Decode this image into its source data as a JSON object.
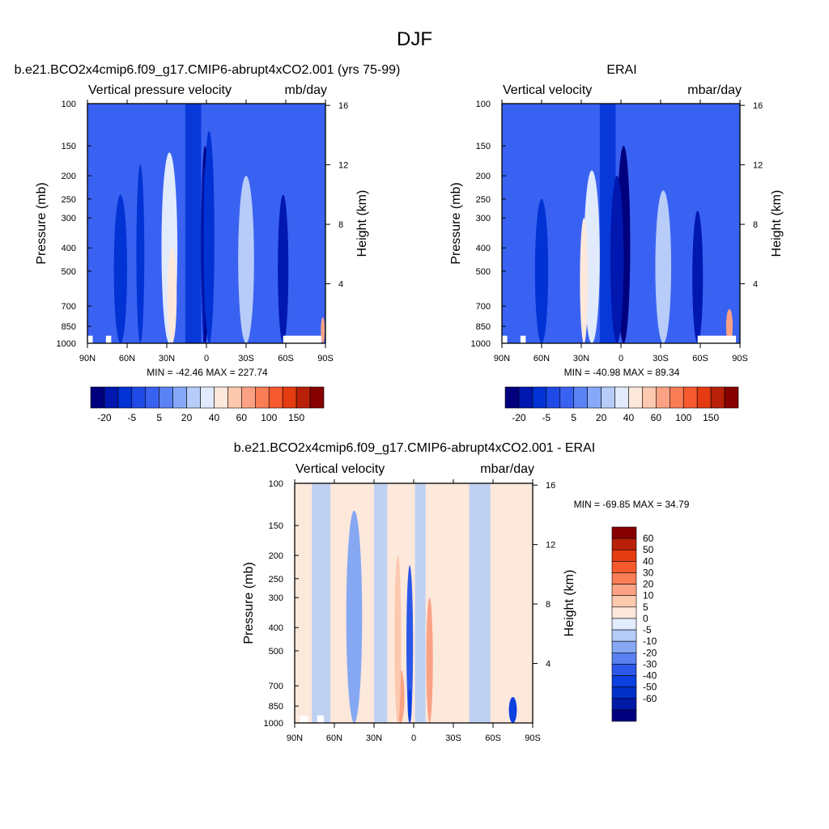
{
  "figure_title": "DJF",
  "colors": {
    "model_cbar": [
      "#00007f",
      "#0018b0",
      "#0032d4",
      "#1f4ae6",
      "#3a62f2",
      "#5a82f5",
      "#86a8f7",
      "#b7ccf8",
      "#e1ebfd",
      "#fde8dc",
      "#fcc8ae",
      "#fba284",
      "#f97d55",
      "#f65a2e",
      "#e43b10",
      "#b82008",
      "#870000"
    ],
    "diff_cbar": [
      "#00007f",
      "#001aa8",
      "#0030c8",
      "#0c40e0",
      "#2c58ea",
      "#5880ee",
      "#86a8f2",
      "#b4ccf7",
      "#e2ecfd",
      "#fde8dc",
      "#fcc8ae",
      "#fba284",
      "#f97d55",
      "#f65a2e",
      "#e43b10",
      "#b82008",
      "#870000"
    ]
  },
  "chart_data": [
    {
      "id": "model",
      "type": "contour",
      "title": "b.e21.BCO2x4cmip6.f09_g17.CMIP6-abrupt4xCO2.001 (yrs 75-99)",
      "left_subtitle": "Vertical pressure velocity",
      "right_subtitle": "mb/day",
      "ylabel": "Pressure (mb)",
      "ylabel_right": "Height (km)",
      "y_ticks": [
        "100",
        "150",
        "200",
        "250",
        "300",
        "400",
        "500",
        "700",
        "850",
        "1000"
      ],
      "y_tick_values": [
        100,
        150,
        200,
        250,
        300,
        400,
        500,
        700,
        850,
        1000
      ],
      "right_ticks": [
        "16",
        "12",
        "8",
        "4"
      ],
      "right_tick_values": [
        16,
        12,
        8,
        4
      ],
      "x_ticks": [
        "90N",
        "60N",
        "30N",
        "0",
        "30S",
        "60S",
        "90S"
      ],
      "x_tick_values": [
        90,
        60,
        30,
        0,
        -30,
        -60,
        -90
      ],
      "min_max_label": "MIN = -42.46  MAX = 227.74",
      "min": -42.46,
      "max": 227.74,
      "cbar_labels": [
        "-20",
        "-5",
        "5",
        "20",
        "40",
        "60",
        "100",
        "150"
      ],
      "features": [
        {
          "lat": 1,
          "width": 6,
          "value": -40,
          "p_top": 150
        },
        {
          "lat": 2,
          "width": 3,
          "value": -30,
          "p_top": 180
        },
        {
          "lat": -2,
          "width": 8,
          "value": -20,
          "p_top": 130
        },
        {
          "lat": 28,
          "width": 12,
          "value": 10,
          "p_top": 160
        },
        {
          "lat": 26,
          "width": 7,
          "value": 20,
          "p_top": 400
        },
        {
          "lat": -30,
          "width": 12,
          "value": 8,
          "p_top": 200
        },
        {
          "lat": 65,
          "width": 10,
          "value": -20,
          "p_top": 240
        },
        {
          "lat": 50,
          "width": 6,
          "value": -12,
          "p_top": 180
        },
        {
          "lat": -58,
          "width": 8,
          "value": -22,
          "p_top": 240
        },
        {
          "lat": -88,
          "width": 3,
          "value": 40,
          "p_top": 780
        }
      ]
    },
    {
      "id": "obs",
      "type": "contour",
      "title": "ERAI",
      "left_subtitle": "Vertical velocity",
      "right_subtitle": "mbar/day",
      "ylabel": "Pressure (mb)",
      "ylabel_right": "Height (km)",
      "y_ticks": [
        "100",
        "150",
        "200",
        "250",
        "300",
        "400",
        "500",
        "700",
        "850",
        "1000"
      ],
      "y_tick_values": [
        100,
        150,
        200,
        250,
        300,
        400,
        500,
        700,
        850,
        1000
      ],
      "right_ticks": [
        "16",
        "12",
        "8",
        "4"
      ],
      "right_tick_values": [
        16,
        12,
        8,
        4
      ],
      "x_ticks": [
        "90N",
        "60N",
        "30N",
        "0",
        "30S",
        "60S",
        "90S"
      ],
      "x_tick_values": [
        90,
        60,
        30,
        0,
        -30,
        -60,
        -90
      ],
      "min_max_label": "MIN = -40.98  MAX =  89.34",
      "min": -40.98,
      "max": 89.34,
      "cbar_labels": [
        "-20",
        "-5",
        "5",
        "20",
        "40",
        "60",
        "100",
        "150"
      ],
      "features": [
        {
          "lat": -2,
          "width": 10,
          "value": -35,
          "p_top": 150
        },
        {
          "lat": 3,
          "width": 10,
          "value": -25,
          "p_top": 200
        },
        {
          "lat": 22,
          "width": 12,
          "value": 12,
          "p_top": 190
        },
        {
          "lat": 28,
          "width": 6,
          "value": 20,
          "p_top": 300
        },
        {
          "lat": -32,
          "width": 12,
          "value": 8,
          "p_top": 230
        },
        {
          "lat": 60,
          "width": 10,
          "value": -20,
          "p_top": 250
        },
        {
          "lat": -58,
          "width": 8,
          "value": -22,
          "p_top": 280
        },
        {
          "lat": -82,
          "width": 5,
          "value": 40,
          "p_top": 720
        }
      ]
    },
    {
      "id": "diff",
      "type": "contour",
      "title": "b.e21.BCO2x4cmip6.f09_g17.CMIP6-abrupt4xCO2.001 - ERAI",
      "left_subtitle": "Vertical velocity",
      "right_subtitle": "mbar/day",
      "ylabel": "Pressure (mb)",
      "ylabel_right": "Height (km)",
      "y_ticks": [
        "100",
        "150",
        "200",
        "250",
        "300",
        "400",
        "500",
        "700",
        "850",
        "1000"
      ],
      "y_tick_values": [
        100,
        150,
        200,
        250,
        300,
        400,
        500,
        700,
        850,
        1000
      ],
      "right_ticks": [
        "16",
        "12",
        "8",
        "4"
      ],
      "right_tick_values": [
        16,
        12,
        8,
        4
      ],
      "x_ticks": [
        "90N",
        "60N",
        "30N",
        "0",
        "30S",
        "60S",
        "90S"
      ],
      "x_tick_values": [
        90,
        60,
        30,
        0,
        -30,
        -60,
        -90
      ],
      "min_max_label": "MIN = -69.85  MAX =  34.79",
      "min": -69.85,
      "max": 34.79,
      "cbar_labels": [
        "60",
        "50",
        "40",
        "30",
        "20",
        "10",
        "5",
        "0",
        "-5",
        "-10",
        "-20",
        "-30",
        "-40",
        "-50",
        "-60"
      ],
      "features": [
        {
          "lat": 3,
          "width": 5,
          "value": -25,
          "p_top": 220
        },
        {
          "lat": 3,
          "width": 3,
          "value": -40,
          "p_top": 720
        },
        {
          "lat": 10,
          "width": 6,
          "value": 25,
          "p_top": 600
        },
        {
          "lat": 12,
          "width": 5,
          "value": 15,
          "p_top": 200
        },
        {
          "lat": -12,
          "width": 5,
          "value": 20,
          "p_top": 300
        },
        {
          "lat": -20,
          "width": 6,
          "value": 5,
          "p_top": 150
        },
        {
          "lat": 45,
          "width": 12,
          "value": -6,
          "p_top": 130
        },
        {
          "lat": -75,
          "width": 6,
          "value": -35,
          "p_top": 780
        }
      ]
    }
  ]
}
